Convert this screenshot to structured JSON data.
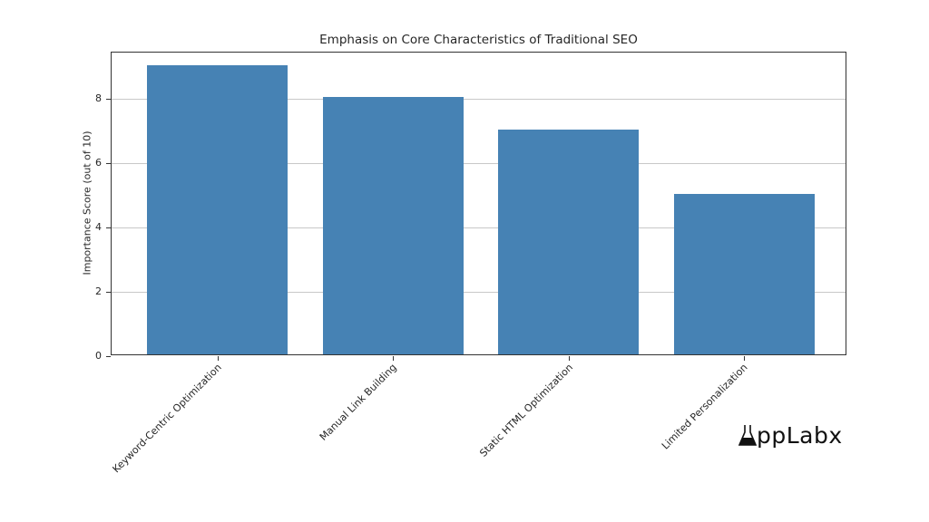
{
  "chart_data": {
    "type": "bar",
    "title": "Emphasis on Core Characteristics of Traditional SEO",
    "xlabel": "",
    "ylabel": "Importance Score (out of 10)",
    "categories": [
      "Keyword-Centric Optimization",
      "Manual Link Building",
      "Static HTML Optimization",
      "Limited Personalization"
    ],
    "values": [
      9,
      8,
      7,
      5
    ],
    "ylim": [
      0,
      9.45
    ],
    "yticks": [
      0,
      2,
      4,
      6,
      8
    ],
    "grid": "y",
    "bar_color": "#4682b4",
    "legend": null
  },
  "watermark": {
    "text": "AppLabx"
  }
}
